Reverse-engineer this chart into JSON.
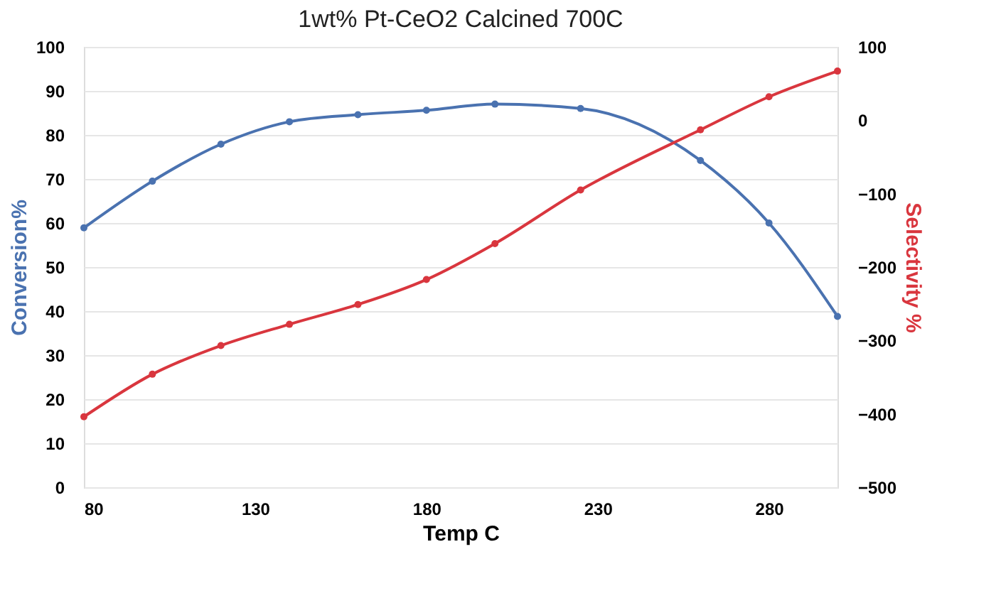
{
  "chart_data": {
    "type": "line",
    "title": "1wt% Pt-CeO2 Calcined 700C",
    "xlabel": "Temp C",
    "ylabel": "Conversion%",
    "y2label": "Selectivity %",
    "x": [
      80,
      100,
      120,
      140,
      160,
      180,
      200,
      225,
      260,
      280,
      300
    ],
    "series": [
      {
        "color": "#4a72b0",
        "values": [
          58.9,
          69.5,
          77.9,
          83.0,
          84.6,
          85.6,
          87.0,
          86.0,
          74.2,
          60.0,
          38.8
        ]
      },
      {
        "color": "#d9363e",
        "axis": "y2",
        "values": [
          -404,
          -346,
          -307,
          -278,
          -251,
          -217,
          -168,
          -95,
          -13,
          32,
          67
        ]
      }
    ],
    "xlim": [
      80,
      300
    ],
    "xticks": [
      80,
      130,
      180,
      230,
      280
    ],
    "ylim": [
      0,
      100
    ],
    "yticks": [
      0,
      10,
      20,
      30,
      40,
      50,
      60,
      70,
      80,
      90,
      100
    ],
    "y2lim": [
      -500,
      100
    ],
    "y2ticks": [
      -500,
      -400,
      -300,
      -200,
      -100,
      0,
      100
    ],
    "grid": "y",
    "marker": "circle",
    "line_style": "solid"
  }
}
